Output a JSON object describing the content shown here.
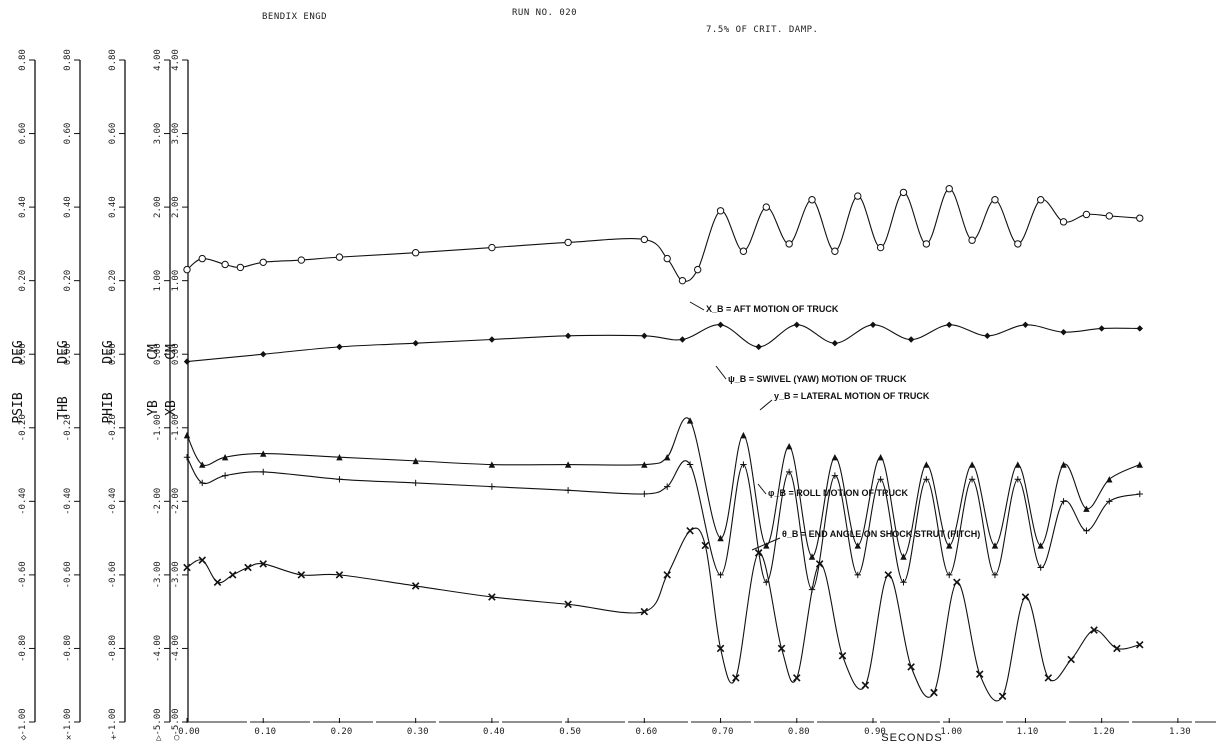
{
  "header": {
    "left": "BENDIX ENGD",
    "center": "RUN NO. 020",
    "right": "7.5% OF CRIT. DAMP."
  },
  "chart_data": {
    "type": "line",
    "title": "BENDIX ENGD   RUN NO. 020",
    "subtitle": "7.5% OF CRIT. DAMP.",
    "xlabel": "SECONDS",
    "xlim": [
      0.0,
      1.35
    ],
    "x_ticks": [
      "0.00",
      "0.10",
      "0.20",
      "0.30",
      "0.40",
      "0.50",
      "0.60",
      "0.70",
      "0.80",
      "0.90",
      "1.00",
      "1.10",
      "1.20",
      "1.30"
    ],
    "grid": false,
    "y_axes": [
      {
        "name": "PSIB",
        "unit": "DEG",
        "symbol": "◇",
        "range": [
          -1.0,
          0.8
        ],
        "ticks": [
          "-1.00",
          "-0.80",
          "-0.60",
          "-0.40",
          "-0.20",
          "0.00",
          "0.20",
          "0.40",
          "0.60",
          "0.80"
        ]
      },
      {
        "name": "THB",
        "unit": "DEG",
        "symbol": "✕",
        "range": [
          -1.0,
          0.8
        ],
        "ticks": [
          "-1.00",
          "-0.80",
          "-0.60",
          "-0.40",
          "-0.20",
          "0.00",
          "0.20",
          "0.40",
          "0.60",
          "0.80"
        ]
      },
      {
        "name": "PHIB",
        "unit": "DEG",
        "symbol": "+",
        "range": [
          -1.0,
          0.8
        ],
        "ticks": [
          "-1.00",
          "-0.80",
          "-0.60",
          "-0.40",
          "-0.20",
          "0.00",
          "0.20",
          "0.40",
          "0.60",
          "0.80"
        ]
      },
      {
        "name": "YB",
        "unit": "CM",
        "symbol": "△",
        "range": [
          -5.0,
          4.0
        ],
        "ticks": [
          "-5.00",
          "-4.00",
          "-3.00",
          "-2.00",
          "-1.00",
          "0.00",
          "1.00",
          "2.00",
          "3.00",
          "4.00"
        ]
      },
      {
        "name": "XB",
        "unit": "CM",
        "symbol": "○",
        "range": [
          -5.0,
          4.0
        ],
        "ticks": [
          "-5.00",
          "-4.00",
          "-3.00",
          "-2.00",
          "-1.00",
          "0.00",
          "1.00",
          "2.00",
          "3.00",
          "4.00"
        ]
      }
    ],
    "series": [
      {
        "name": "X_B = AFT MOTION OF TRUCK",
        "marker": "circle",
        "x": [
          0.0,
          0.02,
          0.05,
          0.07,
          0.1,
          0.15,
          0.2,
          0.3,
          0.4,
          0.5,
          0.6,
          0.63,
          0.65,
          0.67,
          0.7,
          0.73,
          0.76,
          0.79,
          0.82,
          0.85,
          0.88,
          0.91,
          0.94,
          0.97,
          1.0,
          1.03,
          1.06,
          1.09,
          1.12,
          1.15,
          1.18,
          1.21,
          1.25
        ],
        "values": [
          1.15,
          1.3,
          1.22,
          1.18,
          1.25,
          1.28,
          1.32,
          1.38,
          1.45,
          1.52,
          1.56,
          1.3,
          1.0,
          1.15,
          1.95,
          1.4,
          2.0,
          1.5,
          2.1,
          1.4,
          2.15,
          1.45,
          2.2,
          1.5,
          2.25,
          1.55,
          2.1,
          1.5,
          2.1,
          1.8,
          1.9,
          1.88,
          1.85
        ]
      },
      {
        "name": "ψ_B = SWIVEL (YAW) MOTION OF TRUCK",
        "marker": "diamond",
        "x": [
          0.0,
          0.1,
          0.2,
          0.3,
          0.4,
          0.5,
          0.6,
          0.65,
          0.7,
          0.75,
          0.8,
          0.85,
          0.9,
          0.95,
          1.0,
          1.05,
          1.1,
          1.15,
          1.2,
          1.25
        ],
        "values": [
          -0.02,
          0.0,
          0.02,
          0.03,
          0.04,
          0.05,
          0.05,
          0.04,
          0.08,
          0.02,
          0.08,
          0.03,
          0.08,
          0.04,
          0.08,
          0.05,
          0.08,
          0.06,
          0.07,
          0.07
        ]
      },
      {
        "name": "y_B = LATERAL MOTION OF TRUCK",
        "marker": "triangle",
        "x": [
          0.0,
          0.02,
          0.05,
          0.1,
          0.2,
          0.3,
          0.4,
          0.5,
          0.6,
          0.63,
          0.66,
          0.7,
          0.73,
          0.76,
          0.79,
          0.82,
          0.85,
          0.88,
          0.91,
          0.94,
          0.97,
          1.0,
          1.03,
          1.06,
          1.09,
          1.12,
          1.15,
          1.18,
          1.21,
          1.25
        ],
        "values": [
          -0.22,
          -0.3,
          -0.28,
          -0.27,
          -0.28,
          -0.29,
          -0.3,
          -0.3,
          -0.3,
          -0.28,
          -0.18,
          -0.5,
          -0.22,
          -0.52,
          -0.25,
          -0.55,
          -0.28,
          -0.52,
          -0.28,
          -0.55,
          -0.3,
          -0.52,
          -0.3,
          -0.52,
          -0.3,
          -0.52,
          -0.3,
          -0.42,
          -0.34,
          -0.3
        ]
      },
      {
        "name": "φ_B = ROLL MOTION OF TRUCK",
        "marker": "plus",
        "x": [
          0.0,
          0.02,
          0.05,
          0.1,
          0.2,
          0.3,
          0.4,
          0.5,
          0.6,
          0.63,
          0.66,
          0.7,
          0.73,
          0.76,
          0.79,
          0.82,
          0.85,
          0.88,
          0.91,
          0.94,
          0.97,
          1.0,
          1.03,
          1.06,
          1.09,
          1.12,
          1.15,
          1.18,
          1.21,
          1.25
        ],
        "values": [
          -0.28,
          -0.35,
          -0.33,
          -0.32,
          -0.34,
          -0.35,
          -0.36,
          -0.37,
          -0.38,
          -0.36,
          -0.3,
          -0.6,
          -0.3,
          -0.62,
          -0.32,
          -0.64,
          -0.33,
          -0.6,
          -0.34,
          -0.62,
          -0.34,
          -0.6,
          -0.34,
          -0.6,
          -0.34,
          -0.58,
          -0.4,
          -0.48,
          -0.4,
          -0.38
        ]
      },
      {
        "name": "θ_B = END ANGLE ON SHOCK STRUT (PITCH)",
        "marker": "cross",
        "x": [
          0.0,
          0.02,
          0.04,
          0.06,
          0.08,
          0.1,
          0.15,
          0.2,
          0.3,
          0.4,
          0.5,
          0.6,
          0.63,
          0.66,
          0.68,
          0.7,
          0.72,
          0.75,
          0.78,
          0.8,
          0.83,
          0.86,
          0.89,
          0.92,
          0.95,
          0.98,
          1.01,
          1.04,
          1.07,
          1.1,
          1.13,
          1.16,
          1.19,
          1.22,
          1.25
        ],
        "values": [
          -0.58,
          -0.56,
          -0.62,
          -0.6,
          -0.58,
          -0.57,
          -0.6,
          -0.6,
          -0.63,
          -0.66,
          -0.68,
          -0.7,
          -0.6,
          -0.48,
          -0.52,
          -0.8,
          -0.88,
          -0.54,
          -0.8,
          -0.88,
          -0.57,
          -0.82,
          -0.9,
          -0.6,
          -0.85,
          -0.92,
          -0.62,
          -0.87,
          -0.93,
          -0.66,
          -0.88,
          -0.83,
          -0.75,
          -0.8,
          -0.79
        ]
      }
    ],
    "annotations": [
      "X_B = AFT MOTION OF TRUCK",
      "ψ_B = SWIVEL (YAW) MOTION OF TRUCK",
      "y_B = LATERAL MOTION OF TRUCK",
      "φ_B = ROLL MOTION OF TRUCK",
      "θ_B = END ANGLE ON SHOCK STRUT (PITCH)"
    ]
  }
}
